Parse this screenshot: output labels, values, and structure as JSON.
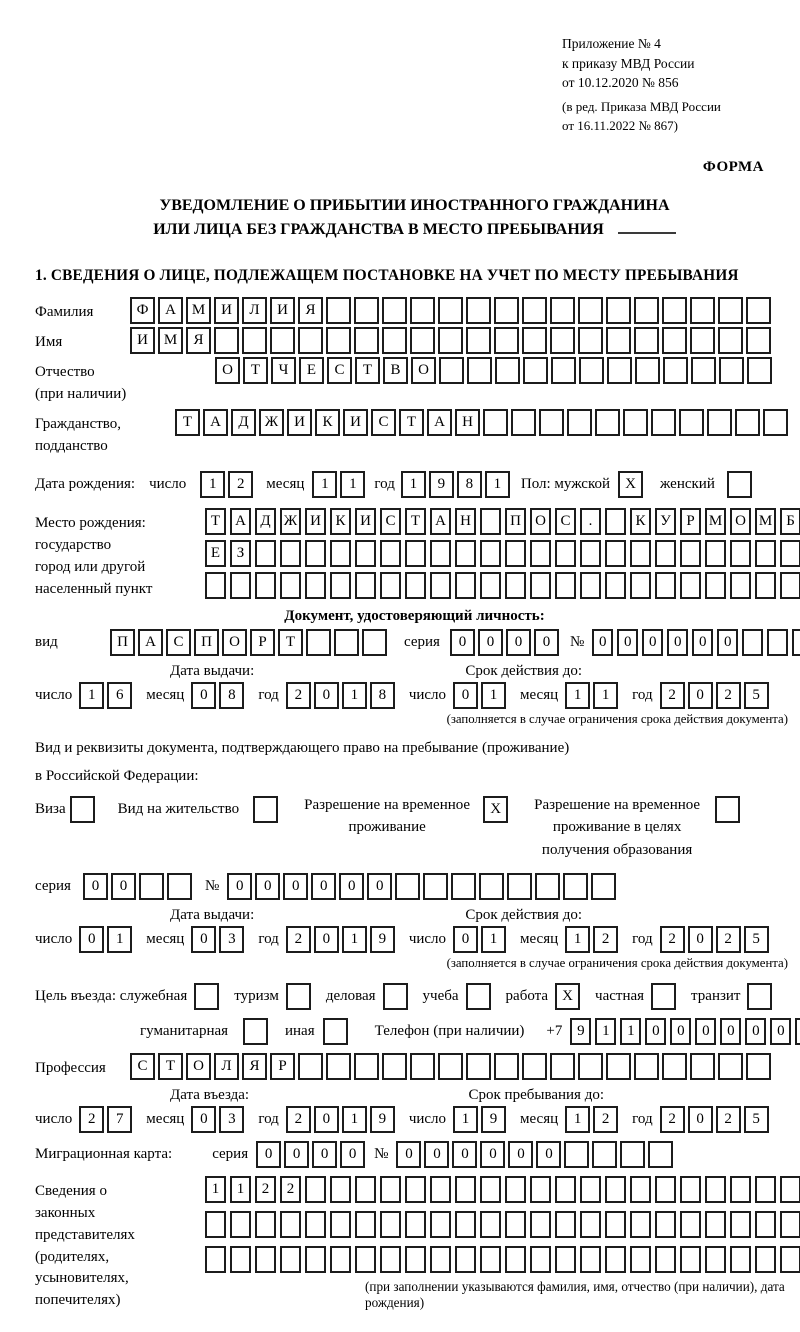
{
  "header": {
    "line1": "Приложение № 4",
    "line2": "к приказу МВД России",
    "line3": "от 10.12.2020 № 856",
    "line4": "(в ред. Приказа МВД России",
    "line5": "от 16.11.2022 № 867)",
    "form_label": "ФОРМА"
  },
  "title": {
    "line1": "УВЕДОМЛЕНИЕ О ПРИБЫТИИ ИНОСТРАННОГО ГРАЖДАНИНА",
    "line2": "ИЛИ ЛИЦА БЕЗ ГРАЖДАНСТВА В МЕСТО ПРЕБЫВАНИЯ"
  },
  "section1": {
    "heading": "1. СВЕДЕНИЯ О ЛИЦЕ, ПОДЛЕЖАЩЕМ ПОСТАНОВКЕ НА УЧЕТ ПО МЕСТУ ПРЕБЫВАНИЯ"
  },
  "labels": {
    "surname": "Фамилия",
    "given_name": "Имя",
    "patronymic_1": "Отчество",
    "patronymic_2": "(при наличии)",
    "citizenship_1": "Гражданство,",
    "citizenship_2": "подданство",
    "birth_date": "Дата рождения:",
    "day": "число",
    "month": "месяц",
    "year": "год",
    "sex_male": "Пол: мужской",
    "sex_female": "женский",
    "birthplace_1": "Место рождения:",
    "birthplace_2": "государство",
    "birthplace_3": "город или другой",
    "birthplace_4": "населенный пункт",
    "id_doc_heading": "Документ, удостоверяющий личность:",
    "doc_type": "вид",
    "series": "серия",
    "number": "№",
    "issue_date": "Дата выдачи:",
    "valid_until": "Срок действия до:",
    "validity_note": "(заполняется в случае ограничения срока действия документа)",
    "res_doc_line1": "Вид и реквизиты документа, подтверждающего право на пребывание (проживание)",
    "res_doc_line2": "в Российской Федерации:",
    "visa": "Виза",
    "residence_permit": "Вид на жительство",
    "temp_residence": "Разрешение на временное проживание",
    "temp_residence_edu": "Разрешение на временное проживание в целях получения образования",
    "purpose": "Цель въезда: служебная",
    "tourism": "туризм",
    "business": "деловая",
    "study": "учеба",
    "work": "работа",
    "private": "частная",
    "transit": "транзит",
    "humanitarian": "гуманитарная",
    "other": "иная",
    "phone": "Телефон (при наличии)",
    "phone_prefix": "+7",
    "profession": "Профессия",
    "entry_date": "Дата въезда:",
    "stay_until": "Срок пребывания до:",
    "migration_card": "Миграционная карта:",
    "rep_1": "Сведения о",
    "rep_2": "законных",
    "rep_3": "представителях",
    "rep_4": "(родителях,",
    "rep_5": "усыновителях,",
    "rep_6": "попечителях)",
    "rep_note": "(при заполнении указываются фамилия, имя, отчество (при наличии), дата рождения)"
  },
  "cells": {
    "surname": {
      "value": "ФАМИЛИЯ",
      "count": 23
    },
    "given_name": {
      "value": "ИМЯ",
      "count": 23
    },
    "patronymic": {
      "value": "ОТЧЕСТВО",
      "count": 20
    },
    "citizenship": {
      "value": "ТАДЖИКИСТАН",
      "count": 22
    },
    "birth_day": {
      "value": "12",
      "count": 2
    },
    "birth_month": {
      "value": "11",
      "count": 2
    },
    "birth_year": {
      "value": "1981",
      "count": 4
    },
    "sex_male": {
      "value": "X",
      "count": 1
    },
    "sex_female": {
      "value": "",
      "count": 1
    },
    "birthplace_row1": {
      "value": "ТАДЖИКИСТАН ПОС. КУРМОМБ",
      "count": 24,
      "size": "small"
    },
    "birthplace_row2": {
      "value": "ЕЗ",
      "count": 24,
      "size": "small"
    },
    "birthplace_row3": {
      "value": "",
      "count": 24,
      "size": "small"
    },
    "id_type": {
      "value": "ПАСПОРТ",
      "count": 10
    },
    "id_series": {
      "value": "0000",
      "count": 4
    },
    "id_number": {
      "value": "000000",
      "count": 10,
      "size": "small"
    },
    "id_issue_day": {
      "value": "16",
      "count": 2
    },
    "id_issue_month": {
      "value": "08",
      "count": 2
    },
    "id_issue_year": {
      "value": "2018",
      "count": 4
    },
    "id_valid_day": {
      "value": "01",
      "count": 2
    },
    "id_valid_month": {
      "value": "11",
      "count": 2
    },
    "id_valid_year": {
      "value": "2025",
      "count": 4
    },
    "perm_visa": {
      "value": "",
      "count": 1
    },
    "perm_residence": {
      "value": "",
      "count": 1
    },
    "perm_temp": {
      "value": "X",
      "count": 1
    },
    "perm_temp_edu": {
      "value": "",
      "count": 1
    },
    "res_series": {
      "value": "00",
      "count": 4
    },
    "res_number": {
      "value": "000000",
      "count": 14
    },
    "res_issue_day": {
      "value": "01",
      "count": 2
    },
    "res_issue_month": {
      "value": "03",
      "count": 2
    },
    "res_issue_year": {
      "value": "2019",
      "count": 4
    },
    "res_valid_day": {
      "value": "01",
      "count": 2
    },
    "res_valid_month": {
      "value": "12",
      "count": 2
    },
    "res_valid_year": {
      "value": "2025",
      "count": 4
    },
    "purpose_official": {
      "value": "",
      "count": 1
    },
    "purpose_tourism": {
      "value": "",
      "count": 1
    },
    "purpose_business": {
      "value": "",
      "count": 1
    },
    "purpose_study": {
      "value": "",
      "count": 1
    },
    "purpose_work": {
      "value": "X",
      "count": 1
    },
    "purpose_private": {
      "value": "",
      "count": 1
    },
    "purpose_transit": {
      "value": "",
      "count": 1
    },
    "purpose_humanitarian": {
      "value": "",
      "count": 1
    },
    "purpose_other": {
      "value": "",
      "count": 1
    },
    "phone": {
      "value": "911000000",
      "count": 10,
      "size": "small"
    },
    "profession": {
      "value": "СТОЛЯР",
      "count": 23
    },
    "entry_day": {
      "value": "27",
      "count": 2
    },
    "entry_month": {
      "value": "03",
      "count": 2
    },
    "entry_year": {
      "value": "2019",
      "count": 4
    },
    "stay_day": {
      "value": "19",
      "count": 2
    },
    "stay_month": {
      "value": "12",
      "count": 2
    },
    "stay_year": {
      "value": "2025",
      "count": 4
    },
    "mig_series": {
      "value": "0000",
      "count": 4
    },
    "mig_number": {
      "value": "000000",
      "count": 10
    },
    "rep_row1": {
      "value": "1122",
      "count": 24,
      "size": "small"
    },
    "rep_row2": {
      "value": "",
      "count": 24,
      "size": "small"
    },
    "rep_row3": {
      "value": "",
      "count": 24,
      "size": "small"
    }
  }
}
